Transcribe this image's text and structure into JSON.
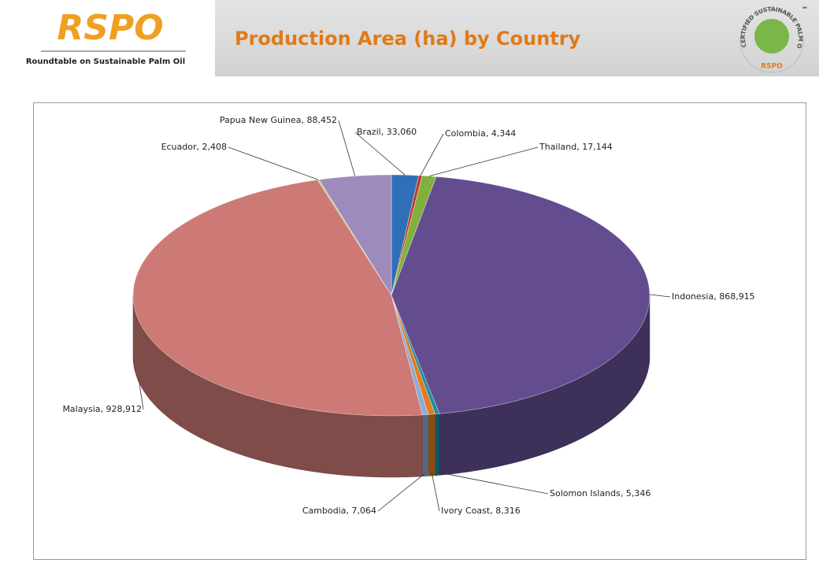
{
  "header": {
    "logo": "RSPO",
    "tagline": "Roundtable on Sustainable Palm Oil",
    "badge_text": "CERTIFIED SUSTAINABLE PALM OIL",
    "badge_logo": "RSPO",
    "badge_mark": "™"
  },
  "chart_data": {
    "type": "pie3d",
    "title": "Production Area (ha) by Country",
    "categories": [
      "Brazil",
      "Colombia",
      "Thailand",
      "Indonesia",
      "Solomon Islands",
      "Ivory Coast",
      "Cambodia",
      "Malaysia",
      "Ecuador",
      "Papua New Guinea"
    ],
    "values": [
      33060,
      4344,
      17144,
      868915,
      5346,
      8316,
      7064,
      928912,
      2408,
      88452
    ],
    "value_labels": [
      ", 33,060",
      ", 4,344",
      ", 17,144",
      ", 868,915",
      ", 5,346",
      ", 8,316",
      ", 7,064",
      ", 928,912",
      ", 2,408",
      ", 88,452"
    ],
    "colors": [
      "#2f6fb8",
      "#c0392b",
      "#82b03c",
      "#634d8f",
      "#1f8c9c",
      "#e07b20",
      "#8eaad4",
      "#cd7a76",
      "#b9cc7c",
      "#9e8bbd"
    ]
  }
}
